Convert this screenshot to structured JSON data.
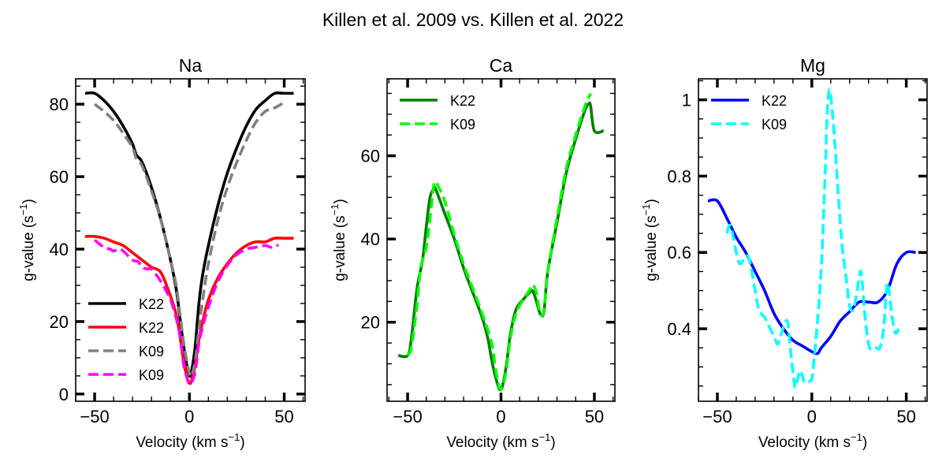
{
  "figure": {
    "title": "Killen et al. 2009 vs. Killen et al. 2022"
  },
  "chart_data": [
    {
      "type": "line",
      "title": "Na",
      "xlabel": "Velocity (km s",
      "ylabel": "g-value (s",
      "label_sup": "−1",
      "label_close": ")",
      "xlim": [
        -60,
        61
      ],
      "ylim": [
        -2,
        87
      ],
      "xticks": [
        -50,
        0,
        50
      ],
      "yticks": [
        0,
        20,
        40,
        60,
        80
      ],
      "legend_position": "lower-left",
      "series": [
        {
          "name": "K22",
          "color": "#000000",
          "style": "solid",
          "x": [
            -55,
            -50,
            -45,
            -40,
            -35,
            -30,
            -28,
            -25,
            -20,
            -15,
            -10,
            -7,
            -5,
            -3,
            -1,
            0,
            1,
            3,
            5,
            7,
            10,
            15,
            20,
            25,
            30,
            35,
            40,
            45,
            50,
            55
          ],
          "y": [
            83,
            83,
            81,
            78,
            74,
            69,
            66,
            64,
            57,
            48,
            37,
            29,
            21,
            13,
            7,
            5,
            6,
            13,
            25,
            33,
            41,
            52,
            61,
            68,
            74,
            78.5,
            81,
            83,
            83,
            83
          ]
        },
        {
          "name": "K22",
          "color": "#ff0000",
          "style": "solid",
          "x": [
            -55,
            -50,
            -45,
            -40,
            -35,
            -30,
            -25,
            -20,
            -15,
            -10,
            -7,
            -5,
            -3,
            -1,
            0,
            1,
            3,
            5,
            7,
            10,
            15,
            20,
            25,
            30,
            35,
            40,
            45,
            50,
            55
          ],
          "y": [
            43.5,
            43.5,
            43,
            42,
            41,
            39,
            37,
            35,
            33.5,
            27,
            22,
            16,
            9,
            4,
            3,
            3.5,
            8,
            15,
            20,
            26,
            32,
            36,
            39,
            41,
            42,
            42,
            43,
            43,
            43
          ]
        },
        {
          "name": "K09",
          "color": "#808080",
          "style": "dashed",
          "x": [
            -50,
            -45,
            -40,
            -35,
            -30,
            -28,
            -25,
            -20,
            -15,
            -10,
            -7,
            -5,
            -3,
            -1,
            0,
            1,
            3,
            5,
            7,
            10,
            15,
            20,
            25,
            30,
            35,
            40,
            45,
            50
          ],
          "y": [
            80,
            78,
            75.5,
            72,
            68,
            65,
            63,
            56,
            48,
            37,
            30,
            22,
            14,
            8,
            5.5,
            5,
            9,
            18,
            26,
            36,
            48,
            57,
            64,
            70,
            75,
            78,
            79,
            80.5
          ]
        },
        {
          "name": "K09",
          "color": "#ff00ff",
          "style": "dashed",
          "x": [
            -50,
            -45,
            -42,
            -40,
            -37,
            -35,
            -30,
            -27,
            -25,
            -22,
            -20,
            -15,
            -10,
            -7,
            -5,
            -3,
            -1,
            0,
            1,
            3,
            5,
            7,
            10,
            15,
            20,
            25,
            30,
            35,
            40,
            43,
            45,
            47
          ],
          "y": [
            42.5,
            40.5,
            40,
            39.5,
            40,
            39.5,
            37,
            36.5,
            35,
            34.5,
            34.5,
            31,
            26,
            21,
            16,
            8,
            4,
            3,
            3,
            6,
            14,
            18.5,
            24,
            31,
            35.5,
            38.5,
            40,
            40.5,
            41,
            40.5,
            41,
            41
          ]
        }
      ]
    },
    {
      "type": "line",
      "title": "Ca",
      "xlabel": "Velocity (km s",
      "ylabel": "g-value (s",
      "label_sup": "−1",
      "label_close": ")",
      "xlim": [
        -61,
        61
      ],
      "ylim": [
        1,
        78.5
      ],
      "xticks": [
        -50,
        0,
        50
      ],
      "yticks": [
        20,
        40,
        60
      ],
      "legend_position": "top-left",
      "series": [
        {
          "name": "K22",
          "color": "#008000",
          "style": "solid",
          "x": [
            -55,
            -50,
            -48,
            -45,
            -42,
            -40,
            -38,
            -36,
            -35,
            -30,
            -25,
            -20,
            -15,
            -10,
            -7,
            -5,
            -3,
            -1,
            0,
            1,
            3,
            5,
            8,
            12,
            15,
            17,
            19,
            21,
            23,
            25,
            30,
            35,
            40,
            45,
            47,
            48,
            50,
            55
          ],
          "y": [
            12,
            12,
            16,
            28,
            35,
            43,
            50,
            52,
            52,
            46,
            40,
            33,
            27,
            21,
            16,
            11,
            7,
            4,
            4,
            5,
            10,
            17,
            23,
            25.5,
            27,
            27.5,
            25,
            22,
            22.5,
            32,
            44,
            56,
            64,
            71,
            72.5,
            72,
            66,
            66
          ]
        },
        {
          "name": "K09",
          "color": "#00ff00",
          "style": "dashed",
          "x": [
            -50,
            -48,
            -45,
            -43,
            -40,
            -38,
            -36,
            -35,
            -34,
            -30,
            -25,
            -20,
            -15,
            -10,
            -5,
            -3,
            -1,
            0,
            1,
            3,
            5,
            8,
            12,
            15,
            17,
            19,
            21,
            23,
            25,
            30,
            35,
            40,
            45,
            48
          ],
          "y": [
            12,
            14,
            24,
            33,
            38,
            45,
            53,
            53.5,
            53,
            49,
            41,
            34,
            28,
            22,
            15,
            9,
            4.5,
            4,
            4.5,
            9,
            16,
            22,
            25.5,
            27.5,
            29,
            27,
            22,
            23,
            32,
            45,
            57,
            65,
            72,
            75
          ]
        }
      ]
    },
    {
      "type": "line",
      "title": "Mg",
      "xlabel": "Velocity (km s",
      "ylabel": "g-value (s",
      "label_sup": "−1",
      "label_close": ")",
      "xlim": [
        -60,
        61
      ],
      "ylim": [
        0.21,
        1.055
      ],
      "xticks": [
        -50,
        0,
        50
      ],
      "yticks": [
        0.4,
        0.6,
        0.8,
        1.0
      ],
      "legend_position": "top-left",
      "series": [
        {
          "name": "K22",
          "color": "#0000ff",
          "style": "solid",
          "x": [
            -55,
            -50,
            -45,
            -40,
            -35,
            -30,
            -25,
            -20,
            -15,
            -10,
            -5,
            0,
            3,
            5,
            10,
            15,
            20,
            25,
            30,
            35,
            40,
            45,
            50,
            55
          ],
          "y": [
            0.735,
            0.735,
            0.69,
            0.64,
            0.6,
            0.55,
            0.5,
            0.44,
            0.4,
            0.37,
            0.355,
            0.34,
            0.335,
            0.35,
            0.38,
            0.42,
            0.445,
            0.47,
            0.47,
            0.47,
            0.5,
            0.57,
            0.6,
            0.6
          ]
        },
        {
          "name": "K09",
          "color": "#00ffff",
          "style": "dashed",
          "x": [
            -45,
            -43,
            -40,
            -38,
            -35,
            -33,
            -30,
            -28,
            -25,
            -23,
            -20,
            -18,
            -16,
            -13,
            -11,
            -9,
            -8,
            -6,
            -4,
            -2,
            0,
            1,
            3,
            5,
            7,
            8,
            9,
            10,
            12,
            14,
            16,
            18,
            20,
            22,
            24,
            26,
            28,
            30,
            32,
            34,
            36,
            38,
            40,
            42,
            44,
            46
          ],
          "y": [
            0.65,
            0.67,
            0.6,
            0.57,
            0.59,
            0.58,
            0.5,
            0.45,
            0.43,
            0.41,
            0.38,
            0.36,
            0.39,
            0.42,
            0.33,
            0.25,
            0.26,
            0.29,
            0.26,
            0.26,
            0.27,
            0.31,
            0.42,
            0.56,
            0.8,
            0.95,
            1.02,
            1.01,
            0.9,
            0.75,
            0.62,
            0.54,
            0.46,
            0.45,
            0.5,
            0.55,
            0.44,
            0.36,
            0.345,
            0.35,
            0.35,
            0.4,
            0.52,
            0.45,
            0.39,
            0.4
          ]
        }
      ]
    }
  ]
}
